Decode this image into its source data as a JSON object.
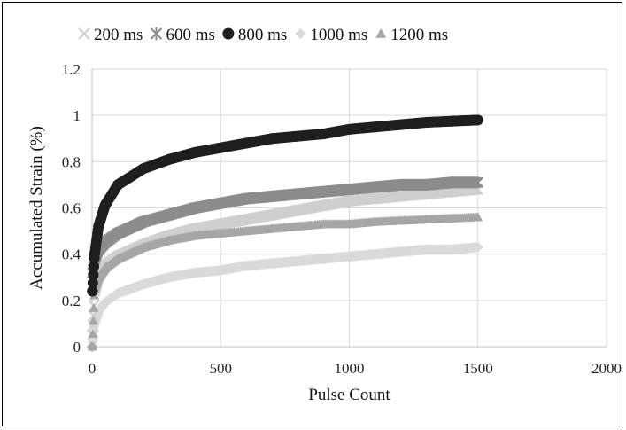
{
  "chart_data": {
    "type": "scatter",
    "title": "",
    "xlabel": "Pulse Count",
    "ylabel": "Accumulated Strain (%)",
    "xlim": [
      0,
      2000
    ],
    "ylim": [
      0,
      1.2
    ],
    "x_ticks": [
      "0",
      "500",
      "1000",
      "1500",
      "2000"
    ],
    "y_ticks": [
      "0",
      "0.2",
      "0.4",
      "0.6",
      "0.8",
      "1",
      "1.2"
    ],
    "grid": true,
    "legend_position": "top",
    "series": [
      {
        "name": "200 ms",
        "marker": "x",
        "color": "#cfcfcf",
        "x": [
          1,
          10,
          25,
          50,
          100,
          200,
          300,
          400,
          500,
          600,
          700,
          800,
          900,
          1000,
          1100,
          1200,
          1300,
          1400,
          1500
        ],
        "y": [
          0.05,
          0.24,
          0.3,
          0.35,
          0.39,
          0.44,
          0.48,
          0.51,
          0.53,
          0.55,
          0.57,
          0.59,
          0.61,
          0.63,
          0.64,
          0.65,
          0.66,
          0.67,
          0.68
        ]
      },
      {
        "name": "600 ms",
        "marker": "*",
        "color": "#8c8c8c",
        "x": [
          1,
          10,
          25,
          50,
          100,
          200,
          300,
          400,
          500,
          600,
          700,
          800,
          900,
          1000,
          1100,
          1200,
          1300,
          1400,
          1500
        ],
        "y": [
          0.32,
          0.38,
          0.42,
          0.45,
          0.49,
          0.54,
          0.57,
          0.6,
          0.62,
          0.64,
          0.65,
          0.66,
          0.67,
          0.68,
          0.69,
          0.7,
          0.7,
          0.71,
          0.71
        ]
      },
      {
        "name": "800 ms",
        "marker": "circle",
        "color": "#1e1e1e",
        "x": [
          1,
          10,
          25,
          50,
          100,
          200,
          300,
          400,
          500,
          600,
          700,
          800,
          900,
          1000,
          1100,
          1200,
          1300,
          1400,
          1500
        ],
        "y": [
          0.24,
          0.4,
          0.52,
          0.61,
          0.7,
          0.77,
          0.81,
          0.84,
          0.86,
          0.88,
          0.9,
          0.91,
          0.92,
          0.94,
          0.95,
          0.96,
          0.97,
          0.975,
          0.98
        ]
      },
      {
        "name": "1000 ms",
        "marker": "diamond",
        "color": "#dadada",
        "x": [
          1,
          10,
          25,
          50,
          100,
          200,
          300,
          400,
          500,
          600,
          700,
          800,
          900,
          1000,
          1100,
          1200,
          1300,
          1400,
          1500
        ],
        "y": [
          0.0,
          0.1,
          0.15,
          0.19,
          0.23,
          0.27,
          0.3,
          0.32,
          0.33,
          0.35,
          0.36,
          0.37,
          0.38,
          0.39,
          0.4,
          0.41,
          0.42,
          0.42,
          0.43
        ]
      },
      {
        "name": "1200 ms",
        "marker": "triangle",
        "color": "#a6a6a6",
        "x": [
          1,
          10,
          25,
          50,
          100,
          200,
          300,
          400,
          500,
          600,
          700,
          800,
          900,
          1000,
          1100,
          1200,
          1300,
          1400,
          1500
        ],
        "y": [
          0.0,
          0.25,
          0.3,
          0.34,
          0.38,
          0.43,
          0.46,
          0.48,
          0.49,
          0.5,
          0.51,
          0.52,
          0.53,
          0.53,
          0.54,
          0.545,
          0.55,
          0.555,
          0.56
        ]
      }
    ]
  }
}
